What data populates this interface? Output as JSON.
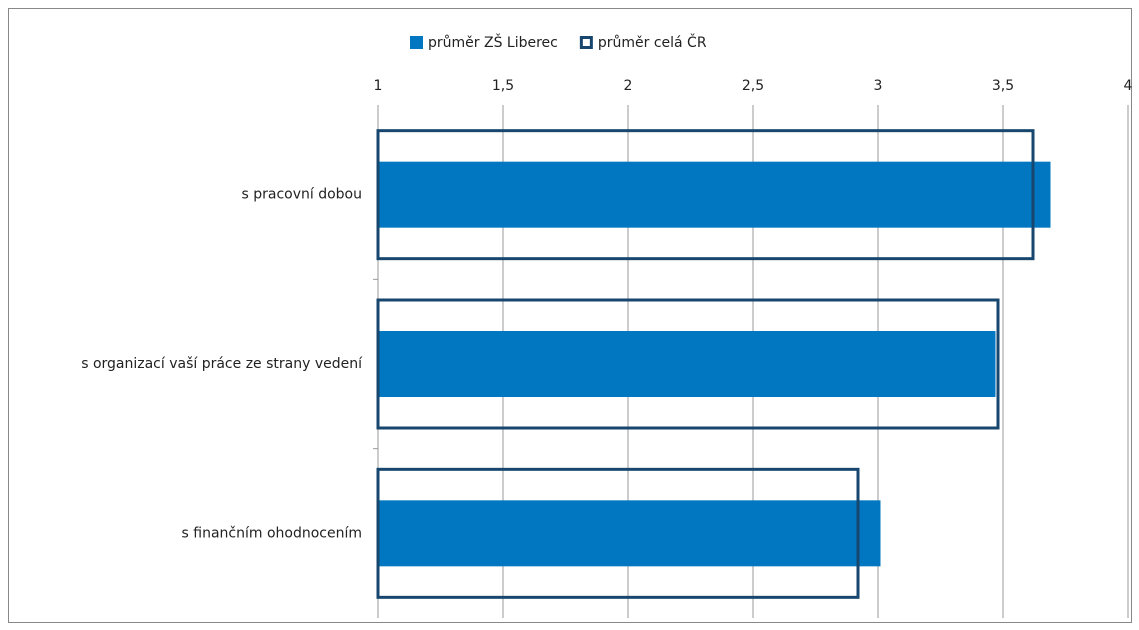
{
  "chart_data": {
    "type": "bar",
    "orientation": "horizontal",
    "categories": [
      "s pracovní dobou",
      "s organizací vaší práce ze strany vedení",
      "s finančním ohodnocením"
    ],
    "series": [
      {
        "name": "průměr ZŠ Liberec",
        "color": "#0077c0",
        "style": "filled",
        "values": [
          3.69,
          3.47,
          3.01
        ]
      },
      {
        "name": "průměr celá ČR",
        "color": "#17476e",
        "style": "outline",
        "values": [
          3.62,
          3.48,
          2.92
        ]
      }
    ],
    "xlim": [
      1,
      4
    ],
    "xticks": [
      1,
      {
        "value": 1.5,
        "label": "1,5"
      },
      2,
      {
        "value": 2.5,
        "label": "2,5"
      },
      3,
      {
        "value": 3.5,
        "label": "3,5"
      },
      4
    ],
    "grid": true,
    "legend": "top"
  }
}
